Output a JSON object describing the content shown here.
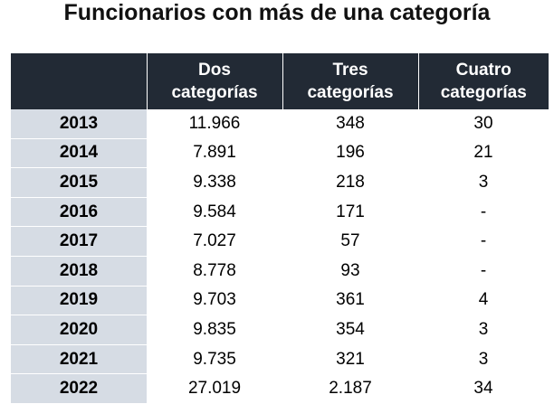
{
  "chart_data": {
    "type": "table",
    "title": "Funcionarios con más de una categoría",
    "columns": [
      "",
      "Dos categorías",
      "Tres categorías",
      "Cuatro categorías"
    ],
    "columns_lines": [
      [
        "",
        ""
      ],
      [
        "Dos",
        "categorías"
      ],
      [
        "Tres",
        "categorías"
      ],
      [
        "Cuatro",
        "categorías"
      ]
    ],
    "rows": [
      [
        "2013",
        "11.966",
        "348",
        "30"
      ],
      [
        "2014",
        "7.891",
        "196",
        "21"
      ],
      [
        "2015",
        "9.338",
        "218",
        "3"
      ],
      [
        "2016",
        "9.584",
        "171",
        "-"
      ],
      [
        "2017",
        "7.027",
        "57",
        "-"
      ],
      [
        "2018",
        "8.778",
        "93",
        "-"
      ],
      [
        "2019",
        "9.703",
        "361",
        "4"
      ],
      [
        "2020",
        "9.835",
        "354",
        "3"
      ],
      [
        "2021",
        "9.735",
        "321",
        "3"
      ],
      [
        "2022",
        "27.019",
        "2.187",
        "34"
      ]
    ],
    "colors": {
      "header_bg": "#222a35",
      "header_text": "#ffffff",
      "year_col_bg": "#d6dce4"
    }
  }
}
